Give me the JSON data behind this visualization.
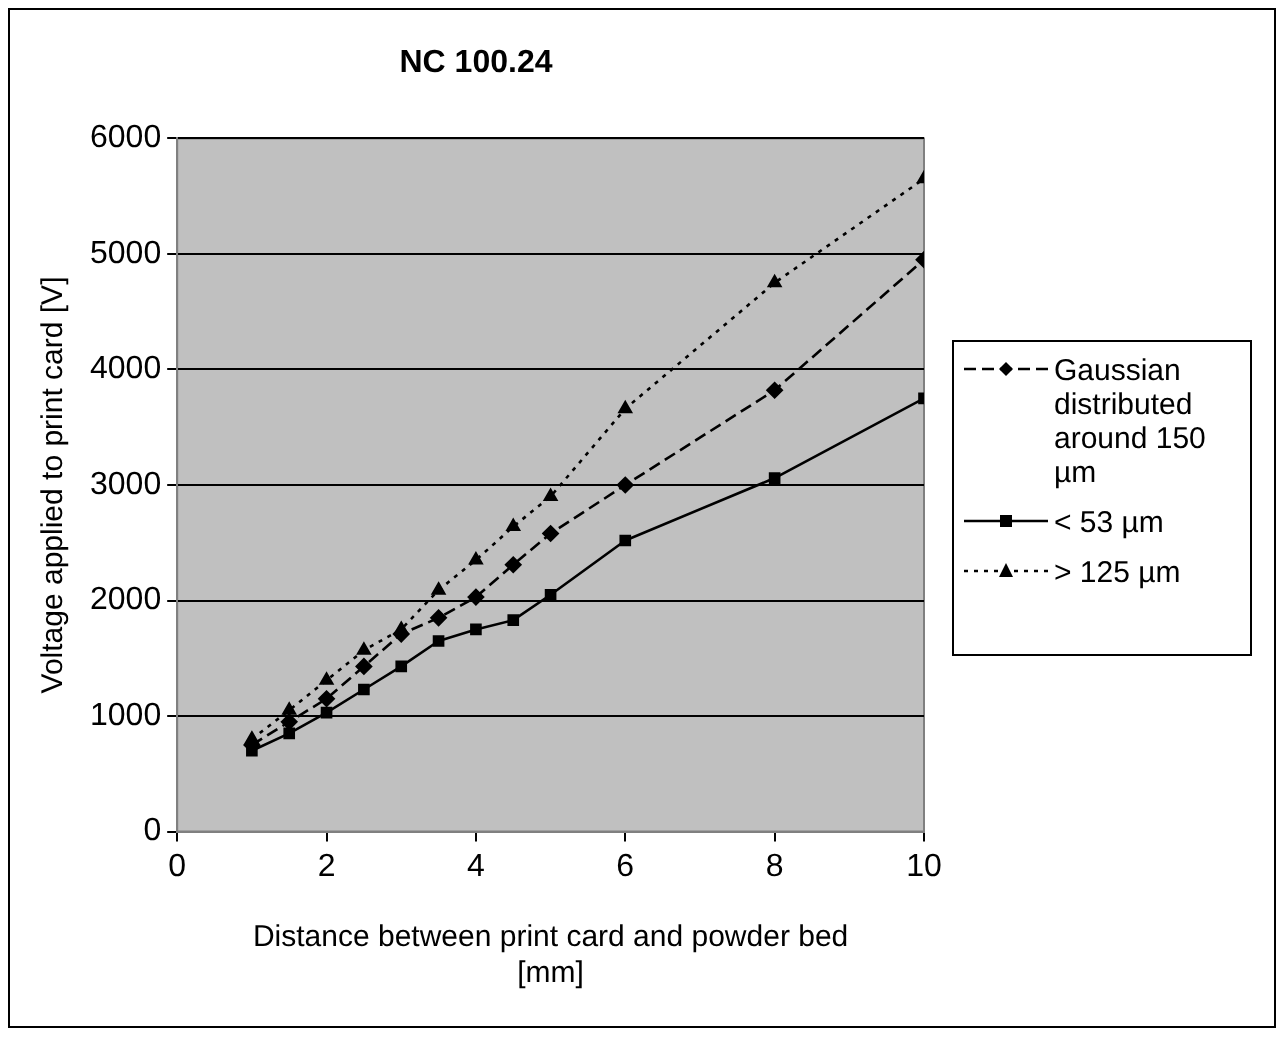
{
  "chart_data": {
    "type": "line",
    "title": "NC 100.24",
    "xlabel": "Distance between print card and powder bed [mm]",
    "ylabel": "Voltage applied to print card [V]",
    "x": [
      1,
      1.5,
      2,
      2.5,
      3,
      3.5,
      4,
      4.5,
      5,
      6,
      8,
      10
    ],
    "series": [
      {
        "name": "Gaussian distributed around 150 µm",
        "color": "#000000",
        "marker": "diamond",
        "line_style": "dashed",
        "values": [
          750,
          950,
          1150,
          1430,
          1710,
          1850,
          2030,
          2310,
          2580,
          3000,
          3820,
          4950
        ]
      },
      {
        "name": "< 53 µm",
        "color": "#000000",
        "marker": "square",
        "line_style": "solid",
        "values": [
          700,
          850,
          1030,
          1230,
          1430,
          1650,
          1750,
          1830,
          2050,
          2520,
          3060,
          3750
        ]
      },
      {
        "name": "> 125 µm",
        "color": "#000000",
        "marker": "triangle",
        "line_style": "dotted",
        "values": [
          800,
          1050,
          1310,
          1570,
          1750,
          2090,
          2350,
          2640,
          2900,
          3660,
          4750,
          5650
        ]
      }
    ],
    "xlim": [
      0,
      10
    ],
    "xticks": [
      0,
      2,
      4,
      6,
      8,
      10
    ],
    "ylim": [
      0,
      6000
    ],
    "yticks": [
      0,
      1000,
      2000,
      3000,
      4000,
      5000,
      6000
    ],
    "grid": "y",
    "legend": "right"
  }
}
